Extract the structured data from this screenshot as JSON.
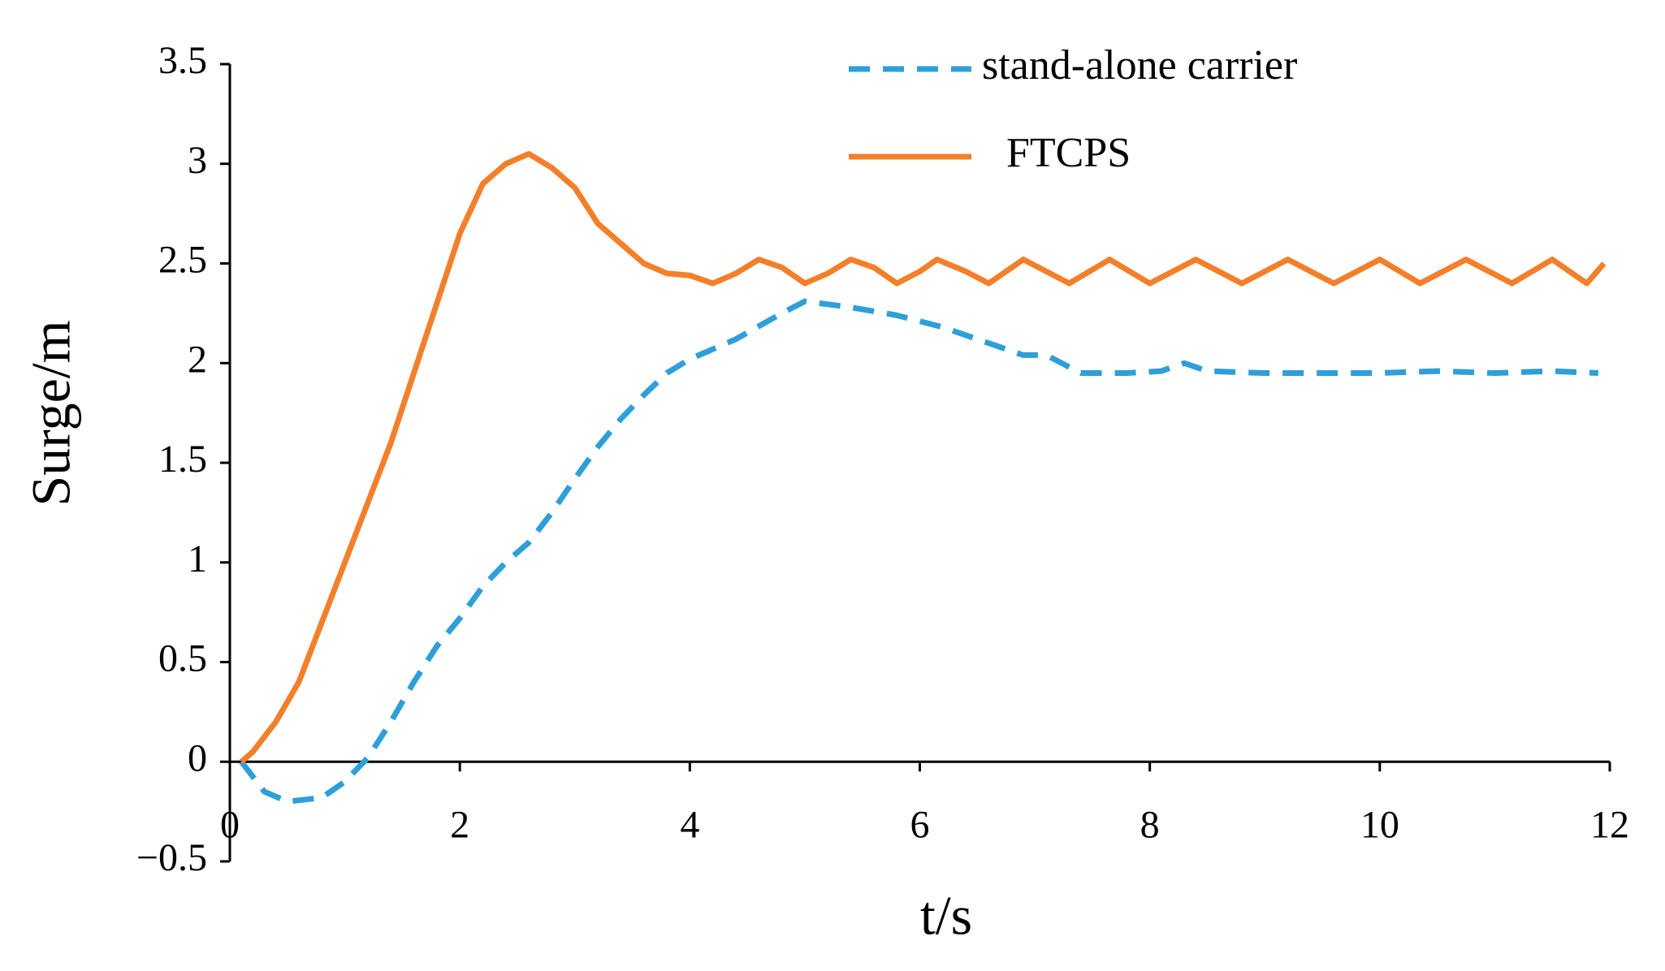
{
  "chart_data": {
    "type": "line",
    "xlabel": "t/s",
    "ylabel": "Surge/m",
    "xlim": [
      0,
      12
    ],
    "xticks": [
      0,
      2,
      4,
      6,
      8,
      10,
      12
    ],
    "ylim": [
      -0.5,
      3.5
    ],
    "yticks": [
      {
        "value": -0.5,
        "label": "−0.5"
      },
      0,
      0.5,
      1,
      1.5,
      2,
      2.5,
      3,
      3.5
    ],
    "series": [
      {
        "name": "stand-alone carrier",
        "color": "#2e9fd8",
        "dash": true,
        "x": [
          0.1,
          0.3,
          0.5,
          0.8,
          1.0,
          1.2,
          1.4,
          1.6,
          1.8,
          2.0,
          2.2,
          2.4,
          2.6,
          2.8,
          3.0,
          3.2,
          3.4,
          3.6,
          3.8,
          4.0,
          4.4,
          4.8,
          5.0,
          5.4,
          5.8,
          6.2,
          6.6,
          6.9,
          7.1,
          7.4,
          7.8,
          8.1,
          8.3,
          8.5,
          9.0,
          9.5,
          10.0,
          10.5,
          11.0,
          11.5,
          11.9
        ],
        "values": [
          0,
          -0.15,
          -0.2,
          -0.18,
          -0.1,
          0.02,
          0.2,
          0.4,
          0.58,
          0.72,
          0.88,
          1.0,
          1.1,
          1.25,
          1.42,
          1.58,
          1.72,
          1.84,
          1.95,
          2.02,
          2.12,
          2.25,
          2.31,
          2.28,
          2.24,
          2.18,
          2.1,
          2.04,
          2.04,
          1.95,
          1.95,
          1.96,
          2.0,
          1.96,
          1.95,
          1.95,
          1.95,
          1.96,
          1.95,
          1.96,
          1.95
        ]
      },
      {
        "name": "FTCPS",
        "color": "#f47f2a",
        "dash": false,
        "x": [
          0.1,
          0.2,
          0.4,
          0.6,
          0.8,
          1.0,
          1.2,
          1.4,
          1.6,
          1.8,
          2.0,
          2.2,
          2.4,
          2.6,
          2.8,
          3.0,
          3.2,
          3.4,
          3.6,
          3.8,
          4.0,
          4.2,
          4.4,
          4.6,
          4.8,
          5.0,
          5.2,
          5.4,
          5.6,
          5.8,
          6.0,
          6.15,
          6.4,
          6.6,
          6.9,
          7.3,
          7.65,
          8.0,
          8.4,
          8.8,
          9.2,
          9.6,
          10.0,
          10.35,
          10.75,
          11.15,
          11.5,
          11.8,
          11.95
        ],
        "values": [
          0,
          0.05,
          0.2,
          0.4,
          0.7,
          1.0,
          1.3,
          1.6,
          1.95,
          2.3,
          2.65,
          2.9,
          3.0,
          3.05,
          2.98,
          2.88,
          2.7,
          2.6,
          2.5,
          2.45,
          2.44,
          2.4,
          2.45,
          2.52,
          2.48,
          2.4,
          2.45,
          2.52,
          2.48,
          2.4,
          2.46,
          2.52,
          2.46,
          2.4,
          2.52,
          2.4,
          2.52,
          2.4,
          2.52,
          2.4,
          2.52,
          2.4,
          2.52,
          2.4,
          2.52,
          2.4,
          2.52,
          2.4,
          2.5
        ]
      }
    ]
  }
}
